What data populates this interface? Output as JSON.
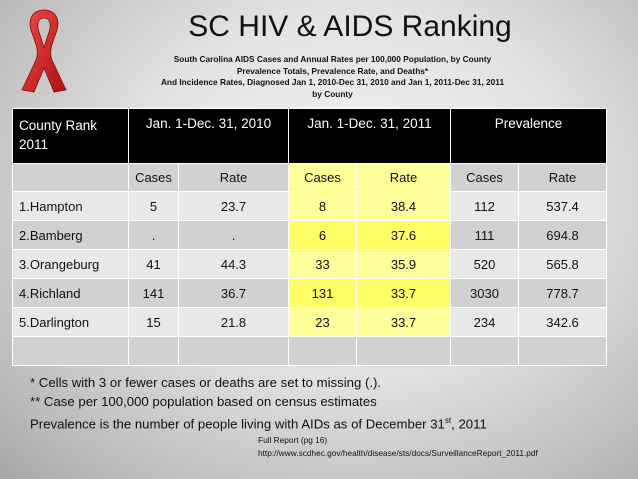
{
  "title": "SC HIV & AIDS Ranking",
  "subtitle_lines": [
    "South Carolina AIDS Cases and Annual Rates per 100,000 Population, by County",
    "Prevalence Totals, Prevalence Rate, and Deaths*",
    "And Incidence Rates, Diagnosed Jan 1, 2010-Dec 31, 2010 and Jan 1, 2011-Dec 31, 2011",
    "by County"
  ],
  "table": {
    "header_groups": [
      "County Rank 2011",
      "Jan. 1-Dec. 31, 2010",
      "Jan. 1-Dec. 31, 2011",
      "Prevalence"
    ],
    "subheaders": [
      "",
      "Cases",
      "Rate",
      "Cases",
      "Rate",
      "Cases",
      "Rate"
    ],
    "rows": [
      [
        "1.Hampton",
        "5",
        "23.7",
        "8",
        "38.4",
        "112",
        "537.4"
      ],
      [
        "2.Bamberg",
        ".",
        ".",
        "6",
        "37.6",
        "111",
        "694.8"
      ],
      [
        "3.Orangeburg",
        "41",
        "44.3",
        "33",
        "35.9",
        "520",
        "565.8"
      ],
      [
        "4.Richland",
        "141",
        "36.7",
        "131",
        "33.7",
        "3030",
        "778.7"
      ],
      [
        "5.Darlington",
        "15",
        "21.8",
        "23",
        "33.7",
        "234",
        "342.6"
      ],
      [
        "",
        "",
        "",
        "",
        "",
        "",
        ""
      ]
    ]
  },
  "notes": {
    "line1": "* Cells with 3 or fewer cases or deaths are set to missing (.).",
    "line2": "** Case per 100,000 population based on census estimates",
    "line3_pre": "Prevalence is the number of people living with AIDs as of December 31",
    "line3_sup": "st",
    "line3_post": ", 2011"
  },
  "source": {
    "label": "Full Report (pg 16)",
    "url": "http://www.scdhec.gov/health/disease/sts/docs/SurveillanceReport_2011.pdf"
  },
  "colors": {
    "header_bg": "#000000",
    "highlight": "#ffff66",
    "ribbon": "#d91e1e"
  },
  "icons": {
    "logo": "red-ribbon-icon"
  }
}
